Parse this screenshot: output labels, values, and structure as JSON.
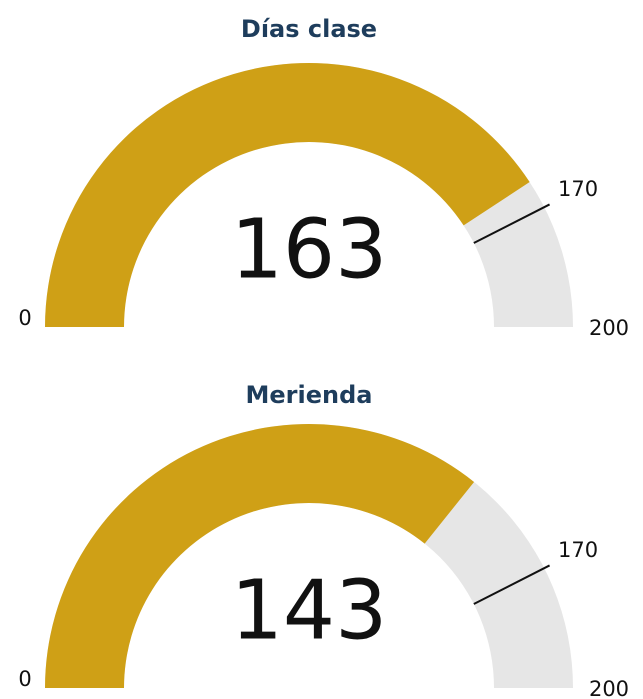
{
  "chart_data": [
    {
      "type": "gauge",
      "title": "Días clase",
      "value": 163,
      "ylim": [
        0,
        200
      ],
      "yticks": [
        0,
        200
      ],
      "target": 170,
      "color": "#cfa016",
      "track_color": "#e6e6e6"
    },
    {
      "type": "gauge",
      "title": "Merienda",
      "value": 143,
      "ylim": [
        0,
        200
      ],
      "yticks": [
        0,
        200
      ],
      "target": 170,
      "color": "#cfa016",
      "track_color": "#e6e6e6"
    }
  ]
}
